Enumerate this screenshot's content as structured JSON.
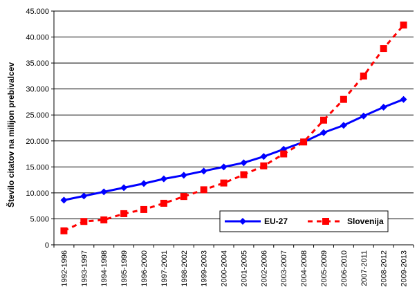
{
  "chart_data": {
    "type": "line",
    "title": "",
    "xlabel": "",
    "ylabel": "Število citatov na milijon prebivalcev",
    "ylim": [
      0,
      45000
    ],
    "yticks": [
      "0",
      "5.000",
      "10.000",
      "15.000",
      "20.000",
      "25.000",
      "30.000",
      "35.000",
      "40.000",
      "45.000"
    ],
    "categories": [
      "1992-1996",
      "1993-1997",
      "1994-1998",
      "1995-1999",
      "1996-2000",
      "1997-2001",
      "1998-2002",
      "1999-2003",
      "2000-2004",
      "2001-2005",
      "2002-2006",
      "2003-2007",
      "2004-2008",
      "2005-2009",
      "2006-2010",
      "2007-2011",
      "2008-2012",
      "2009-2013"
    ],
    "grid": true,
    "legend_position": "bottom-right",
    "series": [
      {
        "name": "EU-27",
        "color": "#0000ff",
        "marker": "diamond",
        "line_style": "solid",
        "values": [
          8600,
          9400,
          10200,
          11000,
          11800,
          12700,
          13400,
          14200,
          15000,
          15800,
          17000,
          18400,
          19800,
          21600,
          23000,
          24800,
          26500,
          28000
        ]
      },
      {
        "name": "Slovenija",
        "color": "#ff0000",
        "marker": "square",
        "line_style": "dashed",
        "values": [
          2700,
          4500,
          4800,
          6000,
          6800,
          8000,
          9300,
          10600,
          11900,
          13500,
          15200,
          17500,
          19800,
          24000,
          28000,
          32500,
          37800,
          42300
        ]
      }
    ]
  }
}
